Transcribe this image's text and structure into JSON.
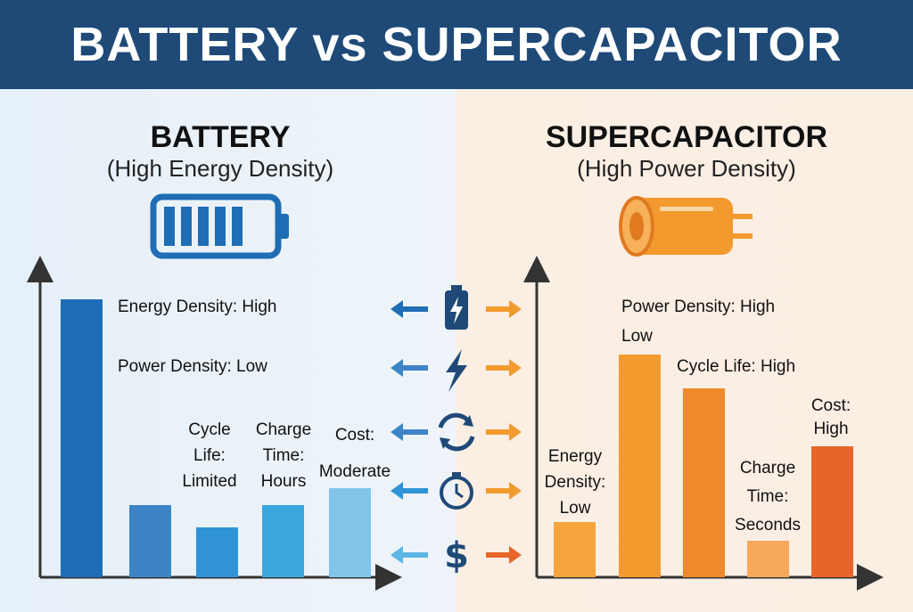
{
  "title": "BATTERY vs SUPERCAPACITOR",
  "chart_data": [
    {
      "type": "bar",
      "title": "BATTERY",
      "subtitle": "(High Energy Density)",
      "categories": [
        "Energy Density: High",
        "Power Density: Low",
        "Cycle Life: Limited",
        "Charge Time: Hours",
        "Cost: Moderate"
      ],
      "values": [
        100,
        26,
        18,
        26,
        32
      ],
      "colors": [
        "#1f6db5",
        "#3d84c6",
        "#2f93d6",
        "#3ba6de",
        "#82c5ea"
      ]
    },
    {
      "type": "bar",
      "title": "SUPERCAPACITOR",
      "subtitle": "(High Power Density)",
      "categories": [
        "Energy Density: Low",
        "Power Density: High",
        "Cycle Life: High",
        "Charge Time: Seconds",
        "Cost: High"
      ],
      "annotations": [
        "Low"
      ],
      "values": [
        20,
        80,
        68,
        13,
        47
      ],
      "colors": [
        "#f5a53c",
        "#f39a2e",
        "#ef8a2a",
        "#f7a85c",
        "#e8652a"
      ]
    }
  ]
}
